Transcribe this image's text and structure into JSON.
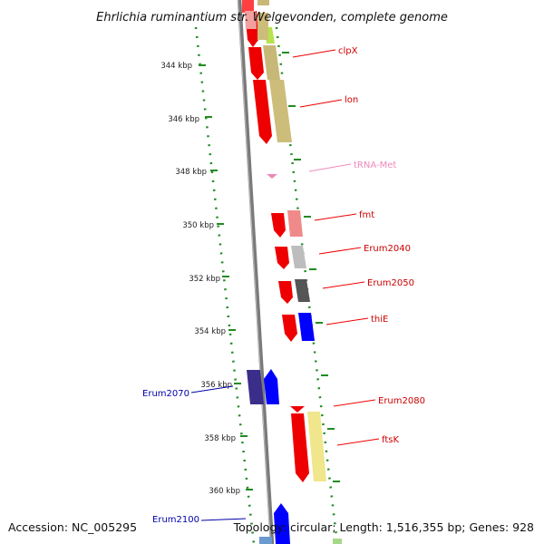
{
  "title": "Ehrlichia ruminantium str. Welgevonden, complete genome",
  "accession": "Accession: NC_005295",
  "summary": "Topology: circular; Length: 1,516,355 bp; Genes: 928",
  "ticks": [
    "344 kbp",
    "346 kbp",
    "348 kbp",
    "350 kbp",
    "352 kbp",
    "354 kbp",
    "356 kbp",
    "358 kbp",
    "360 kbp"
  ],
  "gene_labels": [
    {
      "name": "clpX",
      "color": "#cc0000"
    },
    {
      "name": "lon",
      "color": "#cc0000"
    },
    {
      "name": "tRNA-Met",
      "color": "#ee88bb"
    },
    {
      "name": "fmt",
      "color": "#cc0000"
    },
    {
      "name": "Erum2040",
      "color": "#cc0000"
    },
    {
      "name": "Erum2050",
      "color": "#cc0000"
    },
    {
      "name": "thiE",
      "color": "#cc0000"
    },
    {
      "name": "Erum2070",
      "color": "#0000aa"
    },
    {
      "name": "Erum2080",
      "color": "#cc0000"
    },
    {
      "name": "ftsK",
      "color": "#cc0000"
    },
    {
      "name": "Erum2100",
      "color": "#0000aa"
    }
  ],
  "colors": {
    "forward_strand": "#ee0000",
    "reverse_strand": "#0000ff",
    "backbone": "#888888",
    "ticks": "#228b22",
    "trna": "#ee88bb"
  }
}
